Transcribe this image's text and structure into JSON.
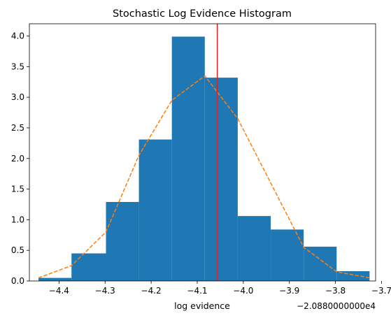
{
  "chart_data": {
    "type": "bar",
    "title": "Stochastic Log Evidence Histogram",
    "xlabel": "log evidence",
    "ylabel": "",
    "x_offset_label": "−2.0880000000e4",
    "xlim": [
      -4.4643,
      -3.7129
    ],
    "ylim": [
      0,
      4.2
    ],
    "bin_edges": [
      -4.4445,
      -4.3729,
      -4.2981,
      -4.2266,
      -4.1551,
      -4.0836,
      -4.0121,
      -3.9405,
      -3.869,
      -3.7975,
      -3.726
    ],
    "heights": [
      0.05,
      0.45,
      1.29,
      2.31,
      3.99,
      3.32,
      1.06,
      0.84,
      0.56,
      0.16
    ],
    "density_curve": {
      "x": [
        -4.4445,
        -4.3729,
        -4.2981,
        -4.2266,
        -4.1551,
        -4.0836,
        -4.0121,
        -3.9405,
        -3.869,
        -3.7975,
        -3.726
      ],
      "y": [
        0.05,
        0.25,
        0.8,
        2.05,
        2.95,
        3.35,
        2.65,
        1.6,
        0.55,
        0.15,
        0.05
      ]
    },
    "vline_x": -4.0565,
    "x_ticks": [
      -4.4,
      -4.3,
      -4.2,
      -4.1,
      -4.0,
      -3.9,
      -3.8,
      -3.7
    ],
    "x_tick_labels": [
      "−4.4",
      "−4.3",
      "−4.2",
      "−4.1",
      "−4.0",
      "−3.9",
      "−3.8",
      "−3.7"
    ],
    "y_ticks": [
      0,
      0.5,
      1.0,
      1.5,
      2.0,
      2.5,
      3.0,
      3.5,
      4.0
    ],
    "y_tick_labels": [
      "0.0",
      "0.5",
      "1.0",
      "1.5",
      "2.0",
      "2.5",
      "3.0",
      "3.5",
      "4.0"
    ],
    "grid": false,
    "colors": {
      "bars": "#1f77b4",
      "curve": "#ff7f0e",
      "vline": "#d62728"
    }
  }
}
